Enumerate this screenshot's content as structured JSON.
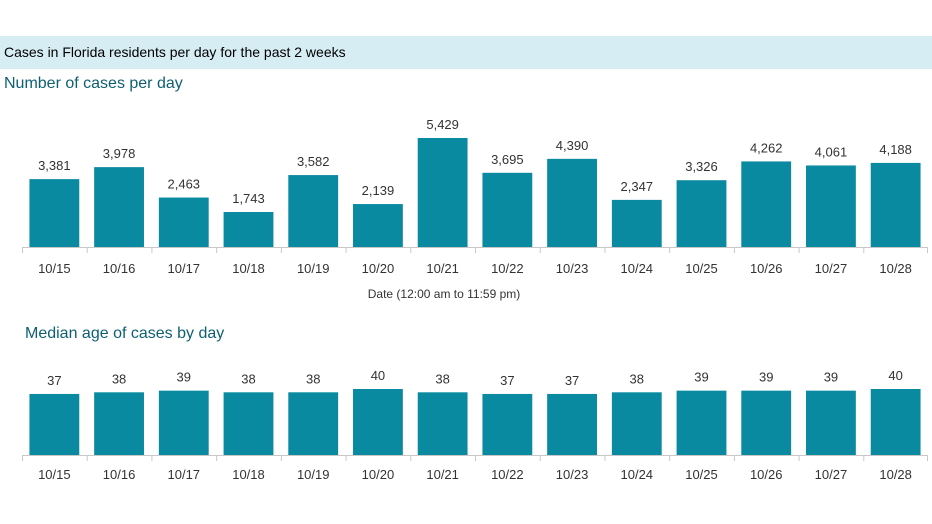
{
  "header": {
    "title": "Cases in Florida residents per day for the past 2 weeks"
  },
  "colors": {
    "bar": "#0a8aa0",
    "banner": "#d6edf3",
    "title": "#0e5f73"
  },
  "chart_data": [
    {
      "type": "bar",
      "title": "Number of cases per day",
      "xlabel": "Date (12:00 am to 11:59 pm)",
      "ylabel": "",
      "categories": [
        "10/15",
        "10/16",
        "10/17",
        "10/18",
        "10/19",
        "10/20",
        "10/21",
        "10/22",
        "10/23",
        "10/24",
        "10/25",
        "10/26",
        "10/27",
        "10/28"
      ],
      "values": [
        3381,
        3978,
        2463,
        1743,
        3582,
        2139,
        5429,
        3695,
        4390,
        2347,
        3326,
        4262,
        4061,
        4188
      ],
      "value_labels": [
        "3,381",
        "3,978",
        "2,463",
        "1,743",
        "3,582",
        "2,139",
        "5,429",
        "3,695",
        "4,390",
        "2,347",
        "3,326",
        "4,262",
        "4,061",
        "4,188"
      ],
      "ylim": [
        0,
        5429
      ],
      "grid": false,
      "legend": "none"
    },
    {
      "type": "bar",
      "title": "Median age of cases by day",
      "xlabel": "",
      "ylabel": "",
      "categories": [
        "10/15",
        "10/16",
        "10/17",
        "10/18",
        "10/19",
        "10/20",
        "10/21",
        "10/22",
        "10/23",
        "10/24",
        "10/25",
        "10/26",
        "10/27",
        "10/28"
      ],
      "values": [
        37,
        38,
        39,
        38,
        38,
        40,
        38,
        37,
        37,
        38,
        39,
        39,
        39,
        40
      ],
      "value_labels": [
        "37",
        "38",
        "39",
        "38",
        "38",
        "40",
        "38",
        "37",
        "37",
        "38",
        "39",
        "39",
        "39",
        "40"
      ],
      "ylim": [
        0,
        40
      ],
      "grid": false,
      "legend": "none"
    }
  ]
}
